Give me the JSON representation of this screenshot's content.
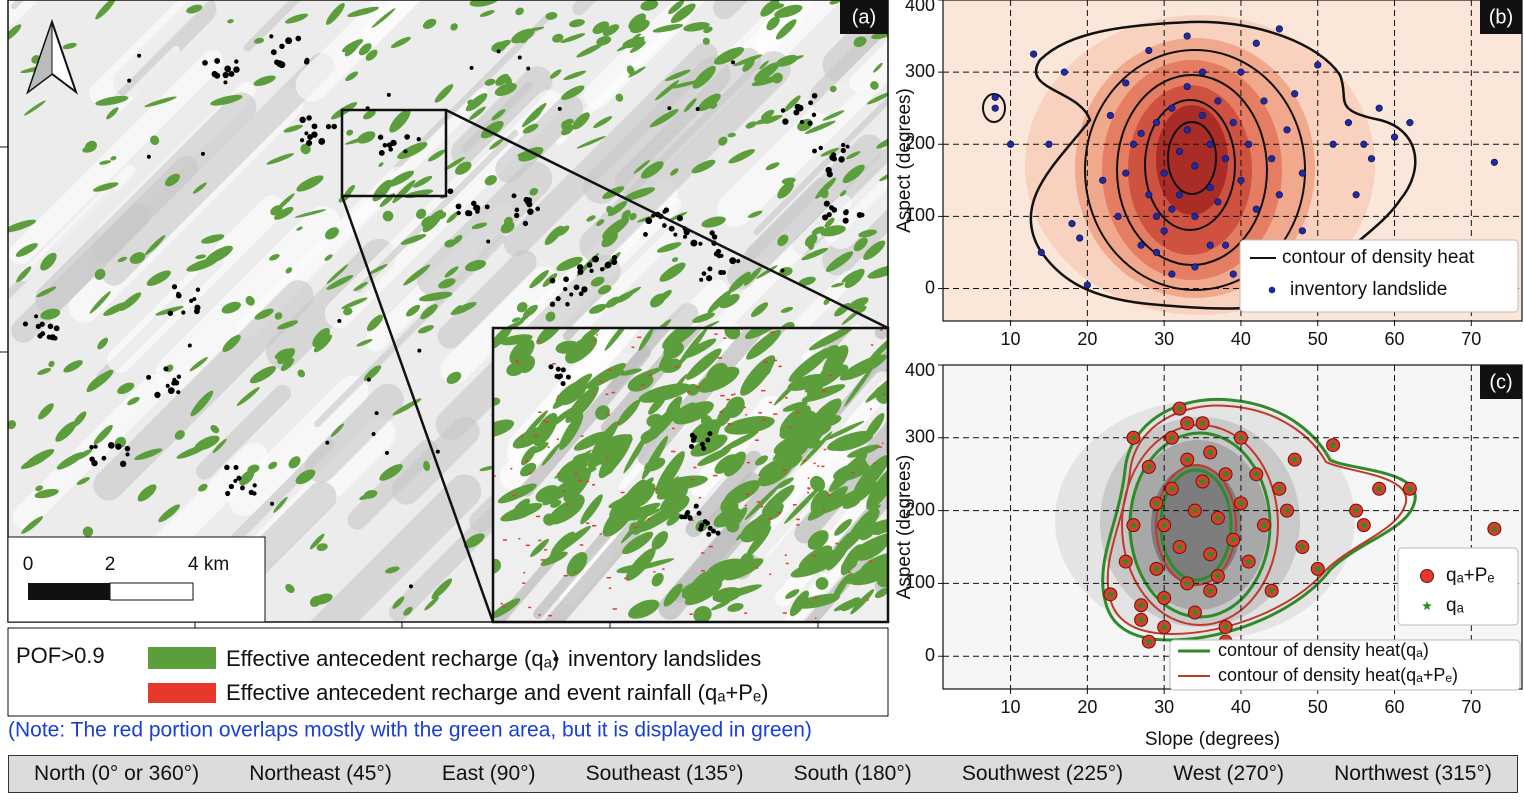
{
  "panel_a": {
    "label": "(a)",
    "scale_labels": [
      "0",
      "2",
      "4 km"
    ]
  },
  "legend": {
    "title": "POF>0.9",
    "green_label": "Effective antecedent recharge (qₐ)",
    "green_color": "#5c9e3c",
    "dot_label": "inventory landslides",
    "red_label": "Effective antecedent recharge and event rainfall (qₐ+Pₑ)",
    "red_color": "#e8382b"
  },
  "note": "(Note: The red portion overlaps mostly with the green area, but it is displayed in green)",
  "footer": [
    "North (0° or 360°)",
    "Northeast (45°)",
    "East (90°)",
    "Southeast (135°)",
    "South (180°)",
    "Southwest (225°)",
    "West (270°)",
    "Northwest (315°)"
  ],
  "chart_data": [
    {
      "type": "scatter",
      "panel_label": "(b)",
      "y_label": "Aspect (degrees)",
      "xlim": [
        1.2,
        76.6
      ],
      "ylim": [
        -45,
        400
      ],
      "xticks": [
        10,
        20,
        30,
        40,
        50,
        60,
        70
      ],
      "yticks": [
        0,
        100,
        200,
        300,
        400
      ],
      "grid": true,
      "contour_labels": [
        "contour of density heat"
      ],
      "series": [
        {
          "name": "inventory landslide",
          "color": "#1f2a9c",
          "x": [
            8,
            8,
            10,
            13,
            14,
            15,
            17,
            18,
            19,
            20,
            22,
            23,
            24,
            25,
            26,
            27,
            28,
            28,
            29,
            30,
            30,
            31,
            31,
            32,
            32,
            33,
            33,
            34,
            34,
            35,
            35,
            36,
            36,
            37,
            37,
            38,
            38,
            39,
            40,
            40,
            41,
            42,
            42,
            43,
            44,
            45,
            45,
            46,
            47,
            48,
            48,
            50,
            52,
            54,
            55,
            56,
            57,
            58,
            60,
            62,
            73,
            25,
            27,
            29,
            36,
            34,
            39,
            33,
            29,
            31
          ],
          "values": [
            250,
            265,
            200,
            325,
            50,
            200,
            300,
            90,
            70,
            5,
            150,
            240,
            100,
            285,
            200,
            60,
            130,
            330,
            100,
            80,
            160,
            110,
            250,
            190,
            130,
            220,
            280,
            100,
            170,
            240,
            300,
            140,
            200,
            120,
            260,
            180,
            60,
            230,
            150,
            300,
            200,
            110,
            340,
            260,
            180,
            360,
            130,
            220,
            270,
            160,
            80,
            310,
            200,
            230,
            130,
            200,
            180,
            250,
            210,
            230,
            175,
            160,
            215,
            230,
            60,
            30,
            20,
            350,
            50,
            20
          ]
        }
      ]
    },
    {
      "type": "scatter",
      "panel_label": "(c)",
      "x_label": "Slope (degrees)",
      "y_label": "Aspect (degrees)",
      "xlim": [
        1.2,
        76.6
      ],
      "ylim": [
        -45,
        400
      ],
      "xticks": [
        10,
        20,
        30,
        40,
        50,
        60,
        70
      ],
      "yticks": [
        0,
        100,
        200,
        300,
        400
      ],
      "grid": true,
      "contour_labels": [
        "contour of density heat(qₐ)",
        "contour of density heat(qₐ+Pₑ)"
      ],
      "series": [
        {
          "name": "qₐ+Pₑ",
          "color": "#e8382b",
          "x": [
            23,
            25,
            26,
            27,
            28,
            28,
            29,
            30,
            30,
            31,
            31,
            32,
            32,
            33,
            33,
            34,
            34,
            35,
            35,
            36,
            36,
            37,
            37,
            38,
            38,
            39,
            40,
            40,
            41,
            42,
            43,
            44,
            45,
            46,
            47,
            48,
            50,
            52,
            55,
            56,
            58,
            62,
            73,
            27,
            29,
            33,
            36,
            38,
            26,
            30
          ],
          "values": [
            85,
            130,
            300,
            50,
            20,
            260,
            120,
            180,
            80,
            300,
            230,
            150,
            340,
            270,
            100,
            200,
            60,
            240,
            320,
            140,
            280,
            190,
            110,
            250,
            40,
            160,
            300,
            210,
            130,
            250,
            180,
            90,
            230,
            200,
            270,
            150,
            120,
            290,
            200,
            180,
            230,
            230,
            175,
            70,
            210,
            320,
            90,
            20,
            180,
            40
          ]
        },
        {
          "name": "qₐ",
          "color": "#2f8a2a",
          "x": [
            23,
            25,
            26,
            27,
            28,
            28,
            29,
            30,
            30,
            31,
            31,
            32,
            32,
            33,
            33,
            34,
            34,
            35,
            35,
            36,
            36,
            37,
            37,
            38,
            38,
            39,
            40,
            40,
            41,
            42,
            43,
            44,
            45,
            46,
            47,
            48,
            50,
            52,
            55,
            56,
            58,
            62,
            73,
            27,
            29,
            33,
            36,
            38,
            26,
            30
          ],
          "values": [
            85,
            130,
            300,
            50,
            20,
            260,
            120,
            180,
            80,
            300,
            230,
            150,
            340,
            270,
            100,
            200,
            60,
            240,
            320,
            140,
            280,
            190,
            110,
            250,
            40,
            160,
            300,
            210,
            130,
            250,
            180,
            90,
            230,
            200,
            270,
            150,
            120,
            290,
            200,
            180,
            230,
            230,
            175,
            70,
            210,
            320,
            90,
            20,
            180,
            40
          ]
        }
      ]
    }
  ]
}
